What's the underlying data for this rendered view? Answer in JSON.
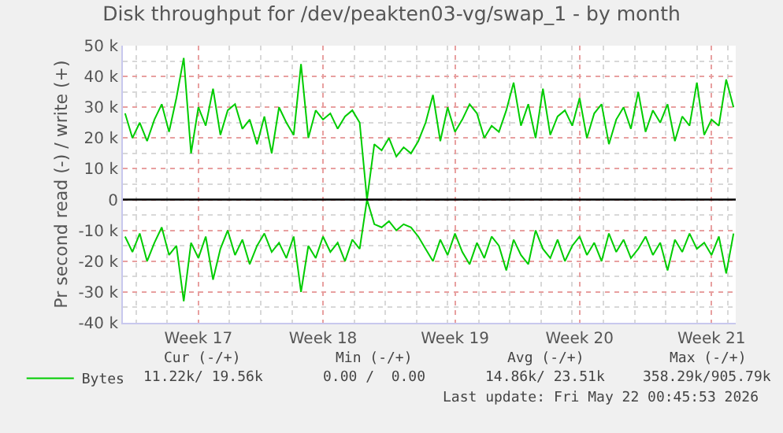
{
  "chart_data": {
    "type": "line",
    "title": "Disk throughput for /dev/peakten03-vg/swap_1 - by month",
    "ylabel": "Pr second read (-) / write (+)",
    "categories": [
      null,
      null,
      null,
      null,
      null,
      null,
      null,
      null,
      null,
      null,
      "Week 17",
      null,
      null,
      null,
      null,
      null,
      null,
      null,
      null,
      null,
      null,
      null,
      null,
      null,
      null,
      null,
      null,
      "Week 18",
      null,
      null,
      null,
      null,
      null,
      null,
      null,
      null,
      null,
      null,
      null,
      null,
      null,
      null,
      null,
      null,
      null,
      "Week 19",
      null,
      null,
      null,
      null,
      null,
      null,
      null,
      null,
      null,
      null,
      null,
      null,
      null,
      null,
      null,
      null,
      "Week 20",
      null,
      null,
      null,
      null,
      null,
      null,
      null,
      null,
      null,
      null,
      null,
      null,
      null,
      null,
      null,
      null,
      null,
      "Week 21",
      null,
      null,
      null
    ],
    "series": [
      {
        "name": "Bytes",
        "color": "#00cc00",
        "values": [
          28000,
          20000,
          25000,
          19000,
          26000,
          31000,
          22000,
          33000,
          46000,
          15000,
          30000,
          24000,
          36000,
          21000,
          29000,
          31000,
          23000,
          26000,
          18000,
          27000,
          15000,
          30000,
          25000,
          21000,
          44000,
          20000,
          29000,
          26000,
          28000,
          23000,
          27000,
          29000,
          25000,
          0,
          18000,
          16000,
          20000,
          14000,
          17000,
          15000,
          19000,
          25000,
          34000,
          19000,
          30000,
          22000,
          26000,
          31000,
          28000,
          20000,
          24000,
          22000,
          29000,
          38000,
          24000,
          31000,
          20000,
          36000,
          21000,
          27000,
          29000,
          24000,
          33000,
          20000,
          28000,
          31000,
          18000,
          26000,
          30000,
          23000,
          35000,
          22000,
          29000,
          25000,
          31000,
          19000,
          27000,
          24000,
          38000,
          21000,
          26000,
          24000,
          39000,
          30000
        ]
      },
      {
        "color": "#00cc00",
        "values": [
          -12000,
          -17000,
          -11000,
          -20000,
          -14000,
          -9000,
          -18000,
          -15000,
          -33000,
          -14000,
          -19000,
          -12000,
          -26000,
          -16000,
          -10000,
          -18000,
          -13000,
          -21000,
          -15000,
          -11000,
          -17000,
          -14000,
          -19000,
          -12000,
          -30000,
          -15000,
          -19000,
          -12000,
          -17000,
          -14000,
          -20000,
          -13000,
          -16000,
          0,
          -8000,
          -9000,
          -7000,
          -10000,
          -8000,
          -9000,
          -12000,
          -16000,
          -20000,
          -13000,
          -18000,
          -11000,
          -17000,
          -21000,
          -14000,
          -19000,
          -12000,
          -15000,
          -23000,
          -13000,
          -18000,
          -21000,
          -10000,
          -16000,
          -19000,
          -13000,
          -20000,
          -15000,
          -12000,
          -18000,
          -14000,
          -20000,
          -11000,
          -17000,
          -13000,
          -19000,
          -16000,
          -12000,
          -18000,
          -14000,
          -23000,
          -13000,
          -17000,
          -11000,
          -16000,
          -14000,
          -18000,
          -12000,
          -24000,
          -11000
        ]
      }
    ],
    "ylim": [
      -40000,
      50000
    ],
    "yticks": [
      {
        "value": -40000,
        "label": "-40 k"
      },
      {
        "value": -30000,
        "label": "-30 k"
      },
      {
        "value": -20000,
        "label": "-20 k"
      },
      {
        "value": -10000,
        "label": "-10 k"
      },
      {
        "value": 0,
        "label": "0"
      },
      {
        "value": 10000,
        "label": "10 k"
      },
      {
        "value": 20000,
        "label": "20 k"
      },
      {
        "value": 30000,
        "label": "30 k"
      },
      {
        "value": 40000,
        "label": "40 k"
      },
      {
        "value": 50000,
        "label": "50 k"
      }
    ],
    "ref_lines": [
      {
        "axis": "y",
        "value": 0,
        "color": "#000000"
      }
    ],
    "grid": true,
    "legend": "bottom left",
    "marker": "none",
    "line_style": "solid",
    "annotations": [
      "Cur (-/+)",
      "Min (-/+)",
      "Avg (-/+)",
      "Max (-/+)",
      "11.22k/ 19.56k",
      "0.00 /  0.00",
      "14.86k/ 23.51k",
      "358.29k/905.79k",
      "Last update: Fri May 22 00:45:53 2026"
    ]
  }
}
